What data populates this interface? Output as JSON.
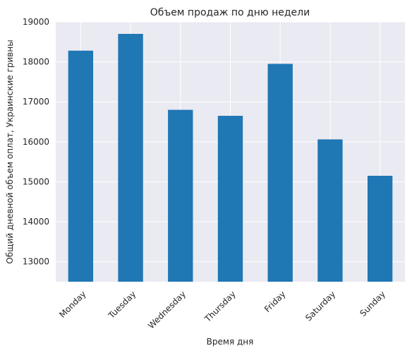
{
  "chart_data": {
    "type": "bar",
    "title": "Объем продаж по дню недели",
    "xlabel": "Время дня",
    "ylabel": "Общий дневной объем оплат, Украинские гривны",
    "categories": [
      "Monday",
      "Tuesday",
      "Wednesday",
      "Thursday",
      "Friday",
      "Saturday",
      "Sunday"
    ],
    "values": [
      18280,
      18700,
      16800,
      16650,
      17950,
      16060,
      15150
    ],
    "ylim": [
      12500,
      19000
    ],
    "yticks": [
      13000,
      14000,
      15000,
      16000,
      17000,
      18000,
      19000
    ],
    "grid": true,
    "legend": false,
    "colors": {
      "bar": "#1f77b4",
      "plot_background": "#eaeaf2",
      "grid": "#ffffff",
      "text": "#262626"
    }
  }
}
